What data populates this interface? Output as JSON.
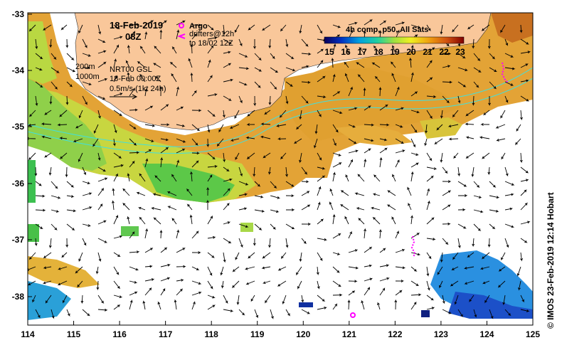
{
  "map": {
    "title_date": "18-Feb-2019",
    "title_time": "08Z",
    "argo_label": "Argo",
    "drifter_label_1": "drifters@12h",
    "drifter_label_2": "to 18/02 12Z",
    "colorbar_title": "4h comp, p50, All Sats",
    "colorbar_ticks": [
      "15",
      "16",
      "17",
      "18",
      "19",
      "20",
      "21",
      "22",
      "23"
    ],
    "isobath_200": "200m",
    "isobath_1000": "1000m",
    "model_label_1": "NRT00 GSL",
    "model_label_2": "18-Feb 00:00Z",
    "vector_scale": "0.5m/s (1kt 24h)",
    "credit": "© IMOS 23-Feb-2019 12:14 Hobart",
    "lon_ticks": [
      "114",
      "115",
      "116",
      "117",
      "118",
      "119",
      "120",
      "121",
      "122",
      "123",
      "124",
      "125"
    ],
    "lat_ticks": [
      "-33",
      "-34",
      "-35",
      "-36",
      "-37",
      "-38"
    ],
    "colors": {
      "land": "#f9c79a",
      "ocean": "#ffffff",
      "argo": "#ff00ff",
      "isobath": "#40e0e0",
      "sst_cool": "#1040c0",
      "sst_mid": "#a0e040",
      "sst_warm": "#e08a10"
    }
  }
}
